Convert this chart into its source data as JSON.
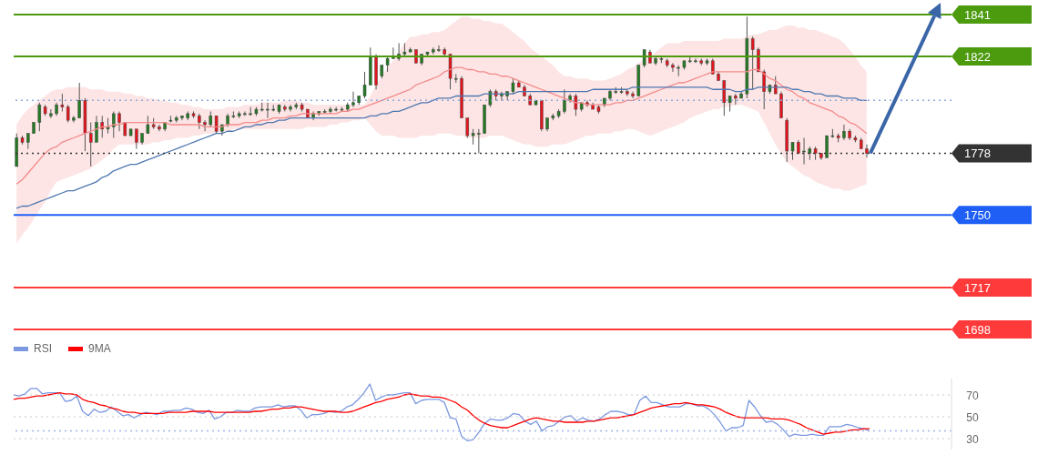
{
  "chart_data": [
    {
      "type": "candlestick",
      "tick_labels": "y",
      "ylim": [
        1698,
        1841
      ],
      "yticks": [
        1698,
        1717,
        1750,
        1778,
        1822,
        1841
      ],
      "colors": [
        "#237a23",
        "#e5141c",
        "#237a23",
        "#237a23",
        "#237a23",
        "#e5141c",
        "#237a23",
        "#237a23",
        "#e5141c",
        "#e5141c",
        "#237a23",
        "#237a23",
        "#e5141c",
        "#e5141c",
        "#237a23",
        "#e5141c",
        "#237a23",
        "#237a23",
        "#e5141c",
        "#e5141c",
        "#237a23",
        "#e5141c",
        "#237a23",
        "#237a23",
        "#e5141c",
        "#e5141c",
        "#237a23",
        "#237a23",
        "#237a23",
        "#237a23",
        "#237a23",
        "#e5141c",
        "#e5141c",
        "#e5141c",
        "#237a23",
        "#e5141c",
        "#237a23",
        "#237a23",
        "#237a23",
        "#237a23",
        "#237a23",
        "#237a23",
        "#237a23",
        "#237a23",
        "#237a23",
        "#237a23",
        "#237a23",
        "#e5141c",
        "#237a23",
        "#237a23",
        "#e5141c",
        "#e5141c",
        "#237a23",
        "#237a23",
        "#237a23",
        "#237a23",
        "#237a23",
        "#237a23",
        "#237a23",
        "#237a23",
        "#237a23",
        "#237a23",
        "#237a23",
        "#e5141c",
        "#237a23",
        "#237a23",
        "#237a23",
        "#237a23",
        "#237a23",
        "#237a23",
        "#e5141c",
        "#237a23",
        "#237a23",
        "#237a23",
        "#237a23",
        "#e5141c",
        "#e5141c",
        "#237a23",
        "#e5141c",
        "#e5141c",
        "#237a23",
        "#237a23",
        "#237a23",
        "#237a23",
        "#e5141c",
        "#237a23",
        "#237a23",
        "#237a23",
        "#e5141c",
        "#e5141c",
        "#e5141c",
        "#237a23",
        "#e5141c",
        "#237a23",
        "#237a23",
        "#237a23",
        "#237a23",
        "#237a23",
        "#e5141c",
        "#237a23",
        "#e5141c",
        "#e5141c",
        "#e5141c",
        "#237a23",
        "#237a23",
        "#237a23",
        "#237a23",
        "#e5141c",
        "#e5141c",
        "#237a23",
        "#237a23",
        "#e5141c",
        "#237a23",
        "#237a23",
        "#e5141c",
        "#e5141c",
        "#237a23",
        "#237a23",
        "#237a23",
        "#237a23",
        "#e5141c",
        "#237a23",
        "#e5141c",
        "#e5141c",
        "#e5141c",
        "#237a23",
        "#e5141c",
        "#237a23",
        "#237a23",
        "#e5141c",
        "#e5141c",
        "#e5141c",
        "#237a23",
        "#e5141c",
        "#e5141c",
        "#e5141c",
        "#237a23",
        "#e5141c",
        "#237a23",
        "#237a23",
        "#e5141c",
        "#e5141c",
        "#237a23",
        "#237a23",
        "#e5141c",
        "#237a23",
        "#e5141c",
        "#e5141c",
        "#e5141c",
        "#e5141c"
      ],
      "categories": [
        null,
        null,
        null,
        null,
        null,
        null,
        null,
        null,
        null,
        null,
        null,
        null,
        null,
        null,
        null,
        null,
        null,
        null,
        null,
        null,
        null,
        null,
        null,
        null,
        null,
        null,
        null,
        null,
        null,
        null,
        null,
        null,
        null,
        null,
        null,
        null,
        null,
        null,
        null,
        null,
        null,
        null,
        null,
        null,
        null,
        null,
        null,
        null,
        null,
        null,
        null,
        null,
        null,
        null,
        null,
        null,
        null,
        null,
        null,
        null,
        null,
        null,
        null,
        null,
        null,
        null,
        null,
        null,
        null,
        null,
        null,
        null,
        null,
        null,
        null,
        null,
        null,
        null,
        null,
        null,
        null,
        null,
        null,
        null,
        null,
        null,
        null,
        null,
        null,
        null,
        null,
        null,
        null,
        null,
        null,
        null,
        null,
        null,
        null,
        null,
        null,
        null,
        null,
        null,
        null,
        null,
        null,
        null,
        null,
        null,
        null,
        null,
        null,
        null,
        null,
        null,
        null,
        null,
        null,
        null,
        null,
        null,
        null,
        null,
        null,
        null,
        null,
        null,
        null,
        null,
        null,
        null,
        null,
        null,
        null,
        null,
        null,
        null,
        null,
        null,
        null,
        null,
        null,
        null,
        null,
        null,
        null,
        null,
        null,
        null
      ],
      "ohlc": [
        [
          1772,
          1787,
          1772,
          1785
        ],
        [
          1785,
          1786,
          1782,
          1783
        ],
        [
          1783,
          1787,
          1780,
          1787
        ],
        [
          1787,
          1792,
          1787,
          1792
        ],
        [
          1792,
          1801,
          1788,
          1800
        ],
        [
          1799,
          1800,
          1795,
          1796
        ],
        [
          1795,
          1798,
          1794,
          1796
        ],
        [
          1796,
          1801,
          1795,
          1800
        ],
        [
          1800,
          1805,
          1797,
          1799
        ],
        [
          1799,
          1800,
          1792,
          1793
        ],
        [
          1793,
          1795,
          1792,
          1794
        ],
        [
          1794,
          1810,
          1794,
          1802
        ],
        [
          1802,
          1803,
          1779,
          1787
        ],
        [
          1787,
          1792,
          1772,
          1783
        ],
        [
          1783,
          1795,
          1783,
          1792
        ],
        [
          1792,
          1795,
          1785,
          1789
        ],
        [
          1789,
          1794,
          1787,
          1790
        ],
        [
          1790,
          1797,
          1785,
          1796
        ],
        [
          1796,
          1797,
          1788,
          1792
        ],
        [
          1792,
          1792,
          1786,
          1786
        ],
        [
          1786,
          1789,
          1786,
          1789
        ],
        [
          1789,
          1789,
          1780,
          1783
        ],
        [
          1783,
          1787,
          1782,
          1787
        ],
        [
          1787,
          1795,
          1787,
          1791
        ],
        [
          1791,
          1794,
          1789,
          1790
        ],
        [
          1790,
          1791,
          1788,
          1789
        ],
        [
          1789,
          1792,
          1788,
          1792
        ],
        [
          1793,
          1795,
          1792,
          1793
        ],
        [
          1793,
          1795,
          1792,
          1794
        ],
        [
          1794,
          1795,
          1793,
          1795
        ],
        [
          1794,
          1797,
          1793,
          1796
        ],
        [
          1796,
          1797,
          1794,
          1795
        ],
        [
          1795,
          1796,
          1789,
          1792
        ],
        [
          1792,
          1793,
          1788,
          1791
        ],
        [
          1791,
          1797,
          1790,
          1795
        ],
        [
          1795,
          1795,
          1787,
          1788
        ],
        [
          1788,
          1791,
          1786,
          1791
        ],
        [
          1791,
          1796,
          1790,
          1795
        ],
        [
          1795,
          1797,
          1794,
          1795
        ],
        [
          1795,
          1797,
          1794,
          1796
        ],
        [
          1796,
          1797,
          1795,
          1796
        ],
        [
          1796,
          1799,
          1795,
          1796
        ],
        [
          1796,
          1799,
          1795,
          1798
        ],
        [
          1798,
          1801,
          1797,
          1798
        ],
        [
          1798,
          1801,
          1794,
          1798
        ],
        [
          1798,
          1800,
          1797,
          1798
        ],
        [
          1797,
          1800,
          1796,
          1800
        ],
        [
          1799,
          1800,
          1797,
          1798
        ],
        [
          1798,
          1800,
          1797,
          1799
        ],
        [
          1799,
          1801,
          1798,
          1800
        ],
        [
          1800,
          1801,
          1797,
          1798
        ],
        [
          1798,
          1798,
          1794,
          1794
        ],
        [
          1794,
          1797,
          1793,
          1796
        ],
        [
          1796,
          1797,
          1795,
          1797
        ],
        [
          1797,
          1798,
          1796,
          1797
        ],
        [
          1797,
          1799,
          1796,
          1798
        ],
        [
          1798,
          1799,
          1797,
          1798
        ],
        [
          1798,
          1799,
          1797,
          1798
        ],
        [
          1798,
          1801,
          1797,
          1800
        ],
        [
          1800,
          1806,
          1799,
          1801
        ],
        [
          1801,
          1804,
          1800,
          1804
        ],
        [
          1804,
          1815,
          1803,
          1809
        ],
        [
          1809,
          1826,
          1809,
          1822
        ],
        [
          1822,
          1823,
          1807,
          1809
        ],
        [
          1813,
          1818,
          1812,
          1818
        ],
        [
          1818,
          1822,
          1815,
          1821
        ],
        [
          1821,
          1826,
          1821,
          1822
        ],
        [
          1821,
          1828,
          1820,
          1823
        ],
        [
          1823,
          1828,
          1822,
          1824
        ],
        [
          1824,
          1826,
          1824,
          1825
        ],
        [
          1825,
          1825,
          1819,
          1819
        ],
        [
          1819,
          1823,
          1818,
          1823
        ],
        [
          1823,
          1824,
          1822,
          1824
        ],
        [
          1824,
          1826,
          1823,
          1825
        ],
        [
          1825,
          1827,
          1824,
          1825
        ],
        [
          1825,
          1826,
          1822,
          1823
        ],
        [
          1823,
          1823,
          1807,
          1812
        ],
        [
          1812,
          1814,
          1810,
          1812
        ],
        [
          1812,
          1813,
          1794,
          1794
        ],
        [
          1794,
          1794,
          1785,
          1786
        ],
        [
          1786,
          1789,
          1782,
          1787
        ],
        [
          1787,
          1789,
          1778,
          1787
        ],
        [
          1787,
          1800,
          1787,
          1800
        ],
        [
          1800,
          1807,
          1799,
          1806
        ],
        [
          1806,
          1807,
          1802,
          1804
        ],
        [
          1804,
          1806,
          1802,
          1805
        ],
        [
          1804,
          1806,
          1802,
          1806
        ],
        [
          1806,
          1812,
          1805,
          1810
        ],
        [
          1810,
          1811,
          1808,
          1808
        ],
        [
          1808,
          1809,
          1804,
          1804
        ],
        [
          1804,
          1805,
          1800,
          1800
        ],
        [
          1800,
          1802,
          1800,
          1802
        ],
        [
          1802,
          1802,
          1788,
          1789
        ],
        [
          1789,
          1794,
          1788,
          1794
        ],
        [
          1794,
          1796,
          1793,
          1795
        ],
        [
          1795,
          1798,
          1794,
          1797
        ],
        [
          1797,
          1807,
          1796,
          1802
        ],
        [
          1802,
          1805,
          1801,
          1804
        ],
        [
          1804,
          1805,
          1795,
          1798
        ],
        [
          1798,
          1801,
          1797,
          1801
        ],
        [
          1801,
          1802,
          1799,
          1800
        ],
        [
          1800,
          1801,
          1798,
          1798
        ],
        [
          1799,
          1800,
          1796,
          1797
        ],
        [
          1800,
          1803,
          1799,
          1803
        ],
        [
          1803,
          1807,
          1802,
          1806
        ],
        [
          1806,
          1808,
          1805,
          1806
        ],
        [
          1806,
          1808,
          1805,
          1806
        ],
        [
          1806,
          1807,
          1804,
          1805
        ],
        [
          1805,
          1806,
          1803,
          1804
        ],
        [
          1804,
          1818,
          1804,
          1818
        ],
        [
          1818,
          1825,
          1817,
          1825
        ],
        [
          1824,
          1825,
          1819,
          1819
        ],
        [
          1819,
          1822,
          1818,
          1821
        ],
        [
          1821,
          1822,
          1819,
          1821
        ],
        [
          1820,
          1821,
          1817,
          1818
        ],
        [
          1818,
          1819,
          1815,
          1817
        ],
        [
          1817,
          1818,
          1813,
          1817
        ],
        [
          1817,
          1820,
          1816,
          1820
        ],
        [
          1820,
          1822,
          1819,
          1820
        ],
        [
          1820,
          1821,
          1819,
          1820
        ],
        [
          1820,
          1821,
          1818,
          1819
        ],
        [
          1819,
          1821,
          1818,
          1820
        ],
        [
          1820,
          1821,
          1814,
          1814
        ],
        [
          1814,
          1815,
          1811,
          1811
        ],
        [
          1811,
          1811,
          1795,
          1801
        ],
        [
          1801,
          1804,
          1797,
          1804
        ],
        [
          1804,
          1805,
          1800,
          1803
        ],
        [
          1803,
          1806,
          1803,
          1805
        ],
        [
          1805,
          1840,
          1803,
          1830
        ],
        [
          1830,
          1831,
          1807,
          1825
        ],
        [
          1825,
          1826,
          1815,
          1815
        ],
        [
          1815,
          1816,
          1798,
          1806
        ],
        [
          1806,
          1809,
          1805,
          1809
        ],
        [
          1809,
          1813,
          1805,
          1805
        ],
        [
          1805,
          1806,
          1794,
          1794
        ],
        [
          1793,
          1794,
          1774,
          1779
        ],
        [
          1779,
          1783,
          1775,
          1783
        ],
        [
          1783,
          1784,
          1778,
          1778
        ],
        [
          1779,
          1785,
          1773,
          1779
        ],
        [
          1778,
          1781,
          1775,
          1780
        ],
        [
          1780,
          1781,
          1775,
          1778
        ],
        [
          1778,
          1778,
          1775,
          1776
        ],
        [
          1776,
          1786,
          1776,
          1786
        ],
        [
          1786,
          1789,
          1785,
          1786
        ],
        [
          1786,
          1787,
          1783,
          1785
        ],
        [
          1785,
          1791,
          1784,
          1788
        ],
        [
          1788,
          1789,
          1784,
          1785
        ],
        [
          1785,
          1786,
          1783,
          1784
        ],
        [
          1784,
          1785,
          1780,
          1780
        ],
        [
          1780,
          1782,
          1776,
          1778
        ]
      ],
      "series": [
        {
          "type": "line",
          "color": "#f48a8a",
          "values": [
            1764,
            1766,
            1769,
            1772,
            1775,
            1778,
            1780,
            1781,
            1783,
            1784,
            1785,
            1786,
            1787,
            1788,
            1789,
            1790,
            1790,
            1791,
            1791,
            1792,
            1792,
            1792,
            1792,
            1792,
            1792,
            1792,
            1792,
            1791,
            1791,
            1791,
            1791,
            1791,
            1791,
            1790,
            1790,
            1790,
            1790,
            1791,
            1791,
            1791,
            1792,
            1792,
            1792,
            1793,
            1793,
            1794,
            1794,
            1794,
            1795,
            1795,
            1796,
            1796,
            1796,
            1796,
            1796,
            1796,
            1796,
            1797,
            1797,
            1798,
            1798,
            1799,
            1800,
            1801,
            1802,
            1803,
            1804,
            1805,
            1806,
            1807,
            1809,
            1810,
            1811,
            1812,
            1813,
            1815,
            1816,
            1817,
            1817,
            1816,
            1816,
            1815,
            1815,
            1814,
            1814,
            1813,
            1813,
            1812,
            1811,
            1810,
            1809,
            1808,
            1807,
            1806,
            1805,
            1804,
            1803,
            1802,
            1801,
            1801,
            1800,
            1800,
            1800,
            1800,
            1800,
            1801,
            1801,
            1802,
            1802,
            1803,
            1804,
            1805,
            1806,
            1807,
            1808,
            1809,
            1810,
            1810,
            1811,
            1812,
            1813,
            1814,
            1815,
            1815,
            1815,
            1815,
            1815,
            1815,
            1815,
            1816,
            1816,
            1814,
            1812,
            1811,
            1809,
            1807,
            1806,
            1804,
            1803,
            1801,
            1800,
            1799,
            1798,
            1797,
            1795,
            1794,
            1792,
            1791,
            1789,
            1787
          ],
          "lower": [
            1737,
            1741,
            1744,
            1748,
            1752,
            1756,
            1761,
            1765,
            1766,
            1767,
            1768,
            1769,
            1770,
            1771,
            1773,
            1775,
            1777,
            1780,
            1782,
            1782,
            1782,
            1782,
            1782,
            1782,
            1783,
            1783,
            1784,
            1784,
            1785,
            1785,
            1785,
            1786,
            1786,
            1787,
            1787,
            1787,
            1788,
            1788,
            1789,
            1789,
            1789,
            1789,
            1789,
            1789,
            1789,
            1789,
            1789,
            1789,
            1789,
            1789,
            1789,
            1790,
            1790,
            1790,
            1790,
            1791,
            1791,
            1792,
            1792,
            1793,
            1793,
            1794,
            1791,
            1788,
            1786,
            1786,
            1786,
            1785,
            1785,
            1785,
            1785,
            1786,
            1786,
            1786,
            1787,
            1787,
            1787,
            1786,
            1786,
            1785,
            1785,
            1785,
            1785,
            1786,
            1786,
            1786,
            1785,
            1784,
            1783,
            1782,
            1782,
            1781,
            1781,
            1781,
            1782,
            1782,
            1782,
            1783,
            1784,
            1785,
            1786,
            1786,
            1787,
            1787,
            1787,
            1788,
            1788,
            1789,
            1789,
            1788,
            1787,
            1786,
            1787,
            1788,
            1789,
            1790,
            1791,
            1792,
            1794,
            1795,
            1796,
            1797,
            1798,
            1798,
            1799,
            1799,
            1800,
            1800,
            1799,
            1798,
            1797,
            1792,
            1787,
            1782,
            1778,
            1774,
            1772,
            1770,
            1768,
            1767,
            1765,
            1764,
            1763,
            1762,
            1762,
            1761,
            1761,
            1762,
            1763,
            1764
          ],
          "upper": [
            1791,
            1795,
            1798,
            1800,
            1802,
            1804,
            1806,
            1807,
            1807,
            1808,
            1808,
            1808,
            1808,
            1807,
            1807,
            1807,
            1806,
            1806,
            1806,
            1805,
            1805,
            1804,
            1804,
            1803,
            1803,
            1802,
            1802,
            1801,
            1801,
            1800,
            1800,
            1799,
            1799,
            1798,
            1798,
            1798,
            1798,
            1799,
            1799,
            1799,
            1800,
            1800,
            1800,
            1801,
            1801,
            1801,
            1801,
            1802,
            1802,
            1802,
            1801,
            1801,
            1800,
            1800,
            1800,
            1800,
            1800,
            1800,
            1800,
            1800,
            1800,
            1800,
            1804,
            1809,
            1813,
            1817,
            1820,
            1824,
            1828,
            1831,
            1831,
            1832,
            1832,
            1833,
            1833,
            1834,
            1836,
            1838,
            1840,
            1840,
            1839,
            1839,
            1838,
            1838,
            1837,
            1837,
            1835,
            1833,
            1831,
            1829,
            1826,
            1824,
            1822,
            1820,
            1818,
            1815,
            1813,
            1813,
            1812,
            1812,
            1812,
            1811,
            1811,
            1811,
            1812,
            1813,
            1814,
            1816,
            1817,
            1819,
            1821,
            1822,
            1824,
            1826,
            1828,
            1828,
            1828,
            1829,
            1829,
            1829,
            1829,
            1829,
            1829,
            1829,
            1830,
            1830,
            1830,
            1830,
            1831,
            1832,
            1832,
            1833,
            1834,
            1834,
            1835,
            1836,
            1836,
            1835,
            1835,
            1834,
            1834,
            1833,
            1832,
            1831,
            1830,
            1828,
            1825,
            1822,
            1818,
            1815
          ]
        },
        {
          "type": "line",
          "color": "#4f78b0",
          "values": [
            1753,
            1754,
            1754,
            1755,
            1756,
            1757,
            1758,
            1759,
            1760,
            1761,
            1761,
            1762,
            1763,
            1764,
            1765,
            1767,
            1768,
            1770,
            1771,
            1772,
            1773,
            1773,
            1774,
            1775,
            1776,
            1777,
            1778,
            1779,
            1780,
            1781,
            1782,
            1783,
            1784,
            1785,
            1786,
            1787,
            1787,
            1788,
            1788,
            1789,
            1790,
            1790,
            1791,
            1791,
            1792,
            1792,
            1793,
            1793,
            1794,
            1794,
            1794,
            1794,
            1794,
            1794,
            1794,
            1794,
            1794,
            1794,
            1794,
            1794,
            1794,
            1794,
            1795,
            1795,
            1796,
            1796,
            1797,
            1797,
            1798,
            1799,
            1800,
            1801,
            1801,
            1802,
            1803,
            1803,
            1803,
            1804,
            1804,
            1804,
            1804,
            1804,
            1805,
            1805,
            1805,
            1805,
            1805,
            1805,
            1806,
            1806,
            1806,
            1806,
            1806,
            1806,
            1806,
            1806,
            1806,
            1806,
            1806,
            1806,
            1806,
            1807,
            1807,
            1807,
            1807,
            1807,
            1807,
            1807,
            1808,
            1808,
            1808,
            1808,
            1808,
            1808,
            1808,
            1808,
            1808,
            1808,
            1808,
            1808,
            1808,
            1808,
            1807,
            1807,
            1807,
            1807,
            1806,
            1806,
            1807,
            1807,
            1808,
            1808,
            1808,
            1808,
            1808,
            1808,
            1807,
            1807,
            1806,
            1806,
            1805,
            1805,
            1804,
            1804,
            1804,
            1803,
            1803,
            1803,
            1802,
            1802
          ]
        }
      ],
      "ref_lines": [
        {
          "axis": "y",
          "value": 1841,
          "color": "#4c9a0e"
        },
        {
          "axis": "y",
          "value": 1822,
          "color": "#4c9a0e"
        },
        {
          "axis": "y",
          "value": 1802,
          "color": "#8fa8d8",
          "line_style": "dotted"
        },
        {
          "axis": "y",
          "value": 1778,
          "color": "#333333",
          "line_style": "dotted"
        },
        {
          "axis": "y",
          "value": 1750,
          "color": "#1f5ff5"
        },
        {
          "axis": "y",
          "value": 1717,
          "color": "#ff3a3a"
        },
        {
          "axis": "y",
          "value": 1698,
          "color": "#ff3a3a"
        }
      ]
    },
    {
      "type": "line",
      "tick_labels": "y",
      "ylim": [
        20,
        85
      ],
      "yticks": [
        30,
        50,
        70
      ],
      "grid": "y",
      "legend": "top left",
      "categories": [
        null,
        null,
        null,
        null,
        null,
        null,
        null,
        null,
        null,
        null,
        null,
        null,
        null,
        null,
        null,
        null,
        null,
        null,
        null,
        null,
        null,
        null,
        null,
        null,
        null,
        null,
        null,
        null,
        null,
        null,
        null,
        null,
        null,
        null,
        null,
        null,
        null,
        null,
        null,
        null,
        null,
        null,
        null,
        null,
        null,
        null,
        null,
        null,
        null,
        null,
        null,
        null,
        null,
        null,
        null,
        null,
        null,
        null,
        null,
        null,
        null,
        null,
        null,
        null,
        null,
        null,
        null,
        null,
        null,
        null,
        null,
        null,
        null,
        null,
        null,
        null,
        null,
        null,
        null,
        null,
        null,
        null,
        null,
        null,
        null,
        null,
        null,
        null,
        null,
        null,
        null,
        null,
        null,
        null,
        null,
        null,
        null,
        null,
        null,
        null,
        null,
        null,
        null,
        null,
        null,
        null,
        null,
        null,
        null,
        null,
        null,
        null,
        null,
        null,
        null,
        null,
        null,
        null,
        null,
        null,
        null,
        null,
        null,
        null,
        null,
        null,
        null,
        null,
        null,
        null,
        null,
        null,
        null,
        null,
        null,
        null,
        null,
        null,
        null,
        null,
        null,
        null,
        null,
        null,
        null,
        null,
        null,
        null,
        null,
        null
      ],
      "series": [
        {
          "name": "RSI",
          "color": "#7b98e0",
          "values": [
            70,
            69,
            71,
            76,
            76,
            71,
            72,
            72,
            72,
            64,
            65,
            69,
            55,
            51,
            57,
            54,
            55,
            59,
            55,
            51,
            52,
            49,
            52,
            54,
            53,
            52,
            55,
            55,
            56,
            56,
            58,
            57,
            54,
            53,
            56,
            48,
            50,
            54,
            54,
            56,
            55,
            55,
            58,
            59,
            59,
            59,
            61,
            59,
            60,
            60,
            56,
            49,
            52,
            52,
            53,
            55,
            54,
            55,
            59,
            61,
            66,
            72,
            80,
            65,
            68,
            70,
            70,
            71,
            72,
            72,
            62,
            65,
            66,
            66,
            66,
            63,
            49,
            48,
            32,
            28,
            29,
            36,
            44,
            48,
            47,
            47,
            49,
            53,
            52,
            46,
            43,
            46,
            37,
            41,
            42,
            46,
            50,
            51,
            46,
            49,
            47,
            46,
            48,
            52,
            55,
            55,
            54,
            52,
            52,
            65,
            69,
            63,
            63,
            61,
            59,
            59,
            59,
            62,
            62,
            60,
            60,
            57,
            52,
            45,
            37,
            40,
            40,
            42,
            65,
            59,
            51,
            45,
            46,
            43,
            38,
            32,
            34,
            33,
            33,
            34,
            33,
            33,
            41,
            41,
            41,
            43,
            42,
            40,
            39,
            37
          ]
        },
        {
          "name": "9MA",
          "color": "#ff0000",
          "values": [
            66,
            67,
            67,
            68,
            69,
            69,
            70,
            71,
            72,
            71,
            71,
            70,
            66,
            64,
            63,
            61,
            60,
            58,
            57,
            55,
            54,
            54,
            53,
            53,
            53,
            53,
            53,
            54,
            54,
            54,
            54,
            55,
            55,
            55,
            55,
            54,
            54,
            54,
            54,
            54,
            54,
            54,
            55,
            55,
            56,
            57,
            57,
            58,
            58,
            59,
            59,
            58,
            57,
            56,
            55,
            55,
            55,
            54,
            54,
            55,
            57,
            59,
            61,
            63,
            64,
            66,
            67,
            68,
            70,
            71,
            70,
            69,
            69,
            68,
            68,
            67,
            65,
            63,
            59,
            56,
            51,
            47,
            44,
            42,
            41,
            40,
            40,
            42,
            44,
            46,
            48,
            49,
            48,
            47,
            46,
            46,
            45,
            45,
            45,
            45,
            46,
            46,
            47,
            48,
            49,
            49,
            50,
            51,
            52,
            54,
            56,
            58,
            59,
            60,
            61,
            62,
            62,
            63,
            62,
            61,
            61,
            60,
            59,
            57,
            54,
            52,
            50,
            49,
            49,
            49,
            49,
            49,
            48,
            48,
            48,
            47,
            45,
            43,
            40,
            38,
            36,
            34,
            35,
            36,
            36,
            37,
            38,
            38,
            39,
            39
          ]
        }
      ],
      "ref_lines": [
        {
          "axis": "y",
          "value": 37,
          "color": "#9fb3e6",
          "line_style": "dotted"
        }
      ]
    }
  ]
}
